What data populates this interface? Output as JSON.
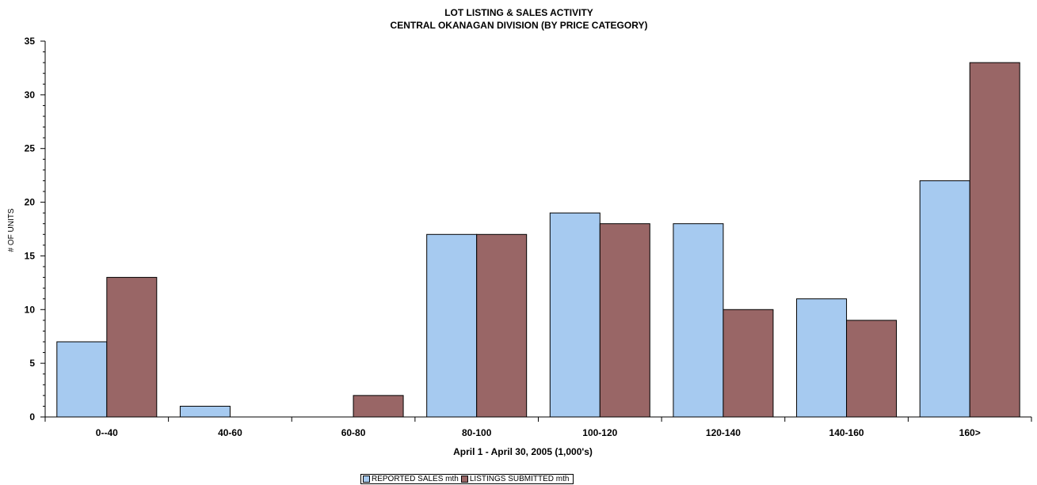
{
  "chart_data": {
    "type": "bar",
    "title": "LOT LISTING & SALES ACTIVITY",
    "subtitle": "CENTRAL OKANAGAN DIVISION (BY PRICE CATEGORY)",
    "xlabel": "April 1 - April 30, 2005 (1,000's)",
    "ylabel": "# OF UNITS",
    "ylim": [
      0,
      35
    ],
    "yticks": [
      "0",
      "5",
      "10",
      "15",
      "20",
      "25",
      "30",
      "35"
    ],
    "categories": [
      "0--40",
      "40-60",
      "60-80",
      "80-100",
      "100-120",
      "120-140",
      "140-160",
      "160>"
    ],
    "series": [
      {
        "name": "REPORTED SALES mth",
        "color": "#a6caf0",
        "values": [
          7,
          1,
          0,
          17,
          19,
          18,
          11,
          22
        ]
      },
      {
        "name": "LISTINGS SUBMITTED mth",
        "color": "#996666",
        "values": [
          13,
          0,
          2,
          17,
          18,
          10,
          9,
          33
        ]
      }
    ],
    "grid": false,
    "legend_position": "bottom"
  }
}
